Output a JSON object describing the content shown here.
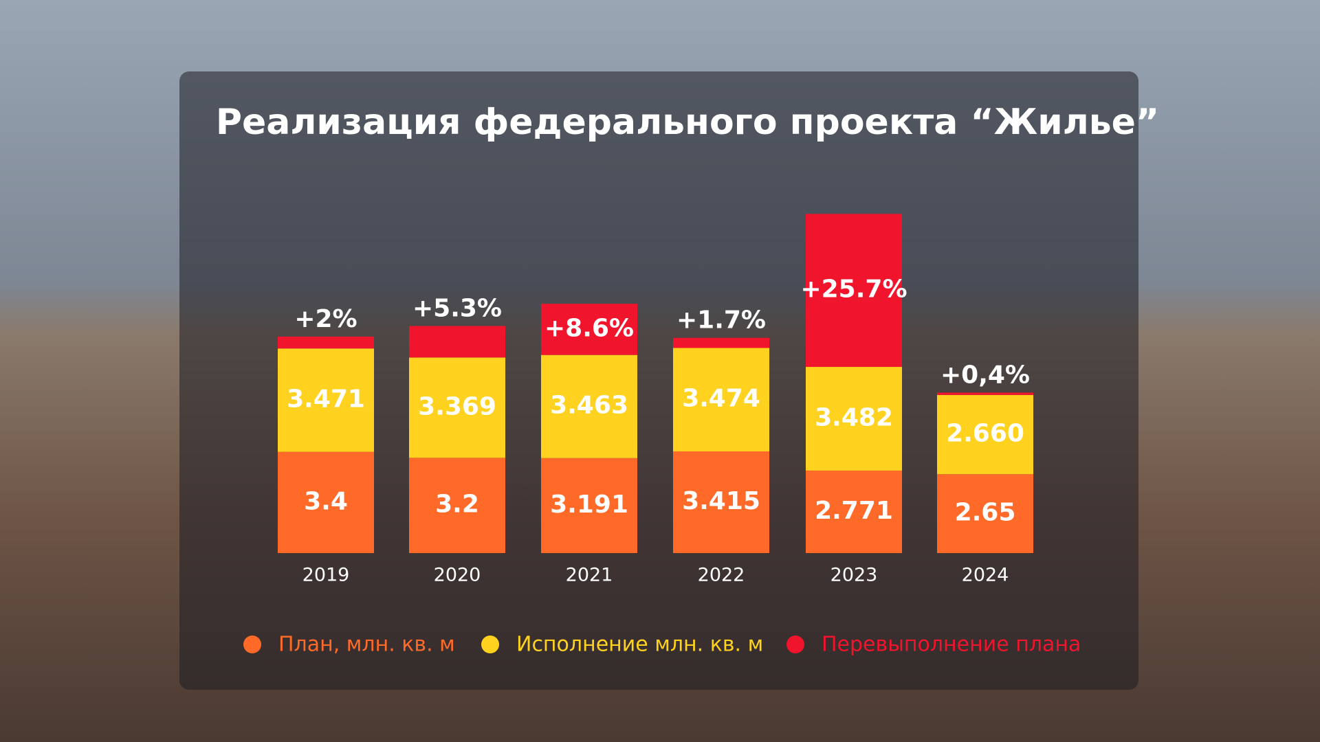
{
  "chart_data": {
    "type": "bar",
    "stacked": true,
    "title": "Реализация федерального проекта “Жилье”",
    "categories": [
      "2019",
      "2020",
      "2021",
      "2022",
      "2023",
      "2024"
    ],
    "series": [
      {
        "name": "План, млн. кв. м",
        "color": "#ff6a28",
        "values": [
          3.4,
          3.2,
          3.191,
          3.415,
          2.771,
          2.65
        ]
      },
      {
        "name": "Исполнение млн. кв. м",
        "color": "#ffd21f",
        "values": [
          3.471,
          3.369,
          3.463,
          3.474,
          3.482,
          2.66
        ],
        "value_labels": [
          "3.471",
          "3.369",
          "3.463",
          "3.474",
          "3.482",
          "2.660"
        ]
      },
      {
        "name": "Перевыполнение плана",
        "color": "#f0142d",
        "axis": "y2",
        "values": [
          2,
          5.3,
          8.6,
          1.7,
          25.7,
          0.4
        ],
        "value_labels": [
          "+2%",
          "+5.3%",
          "+8.6%",
          "+1.7%",
          "+25.7%",
          "+0,4%"
        ]
      }
    ],
    "ylim": [
      0,
      12
    ],
    "y2lim": [
      0,
      60
    ]
  }
}
